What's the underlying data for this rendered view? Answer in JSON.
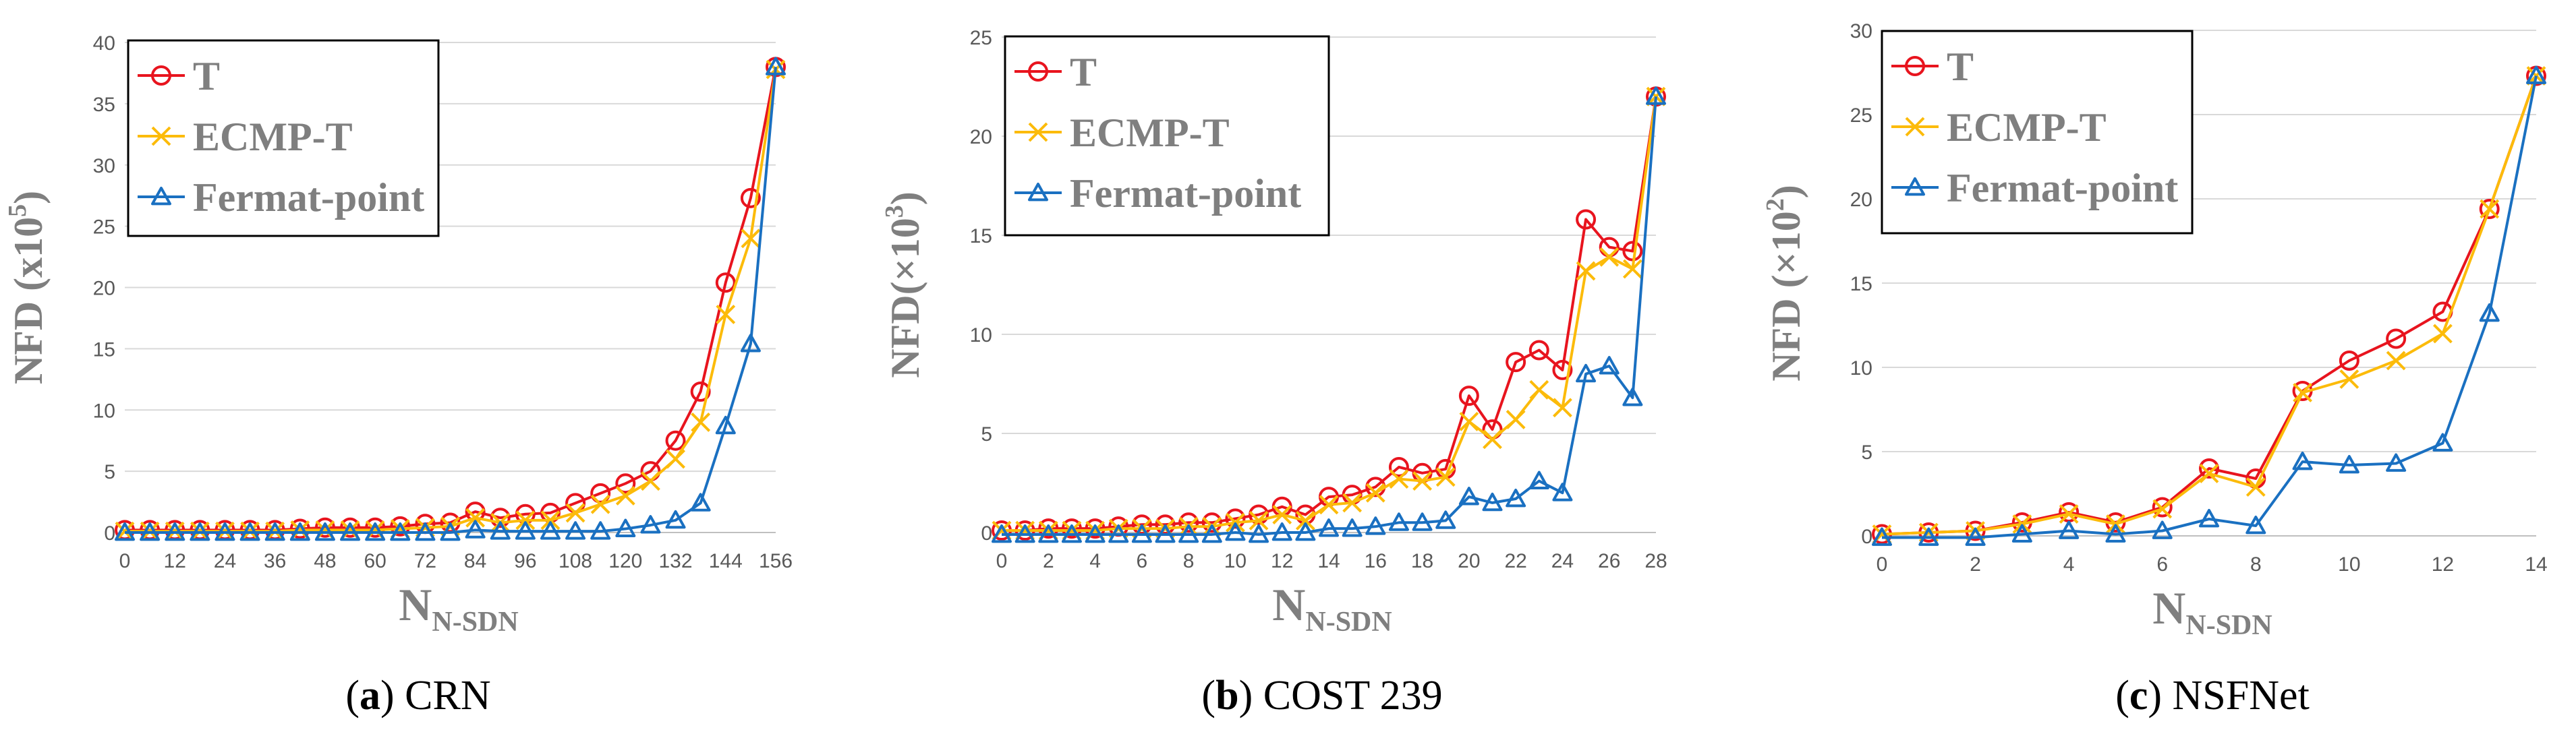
{
  "colors": {
    "T": "#e8141e",
    "ECMP-T": "#fcbb0a",
    "Fermat-point": "#1a70c1",
    "grid": "#d9d9d9",
    "axis_text": "#595959",
    "axis_title": "#7f7f7f"
  },
  "chart_data": [
    {
      "type": "line",
      "caption_letter": "a",
      "caption_name": "CRN",
      "ylabel": "NFD (x10",
      "ylabel_exp": "5",
      "ylabel_close": ")",
      "xlabel": "N",
      "xlabel_sub": "N-SDN",
      "ylim": [
        0,
        40
      ],
      "xlim": [
        0,
        156
      ],
      "yticks": [
        0,
        5,
        10,
        15,
        20,
        25,
        30,
        35,
        40
      ],
      "xticks": [
        0,
        12,
        24,
        36,
        48,
        60,
        72,
        84,
        96,
        108,
        120,
        132,
        144,
        156
      ],
      "legend_position": "top-left",
      "x": [
        0,
        6,
        12,
        18,
        24,
        30,
        36,
        42,
        48,
        54,
        60,
        66,
        72,
        78,
        84,
        90,
        96,
        102,
        108,
        114,
        120,
        126,
        132,
        138,
        144,
        150,
        156
      ],
      "series": [
        {
          "name": "T",
          "marker": "circle",
          "values": [
            0.2,
            0.2,
            0.2,
            0.2,
            0.2,
            0.2,
            0.2,
            0.3,
            0.4,
            0.4,
            0.4,
            0.5,
            0.7,
            0.8,
            1.7,
            1.2,
            1.5,
            1.6,
            2.4,
            3.2,
            4.0,
            5.0,
            7.5,
            11.5,
            20.4,
            27.3,
            38.0
          ]
        },
        {
          "name": "ECMP-T",
          "marker": "x",
          "values": [
            0.1,
            0.1,
            0.1,
            0.1,
            0.1,
            0.1,
            0.1,
            0.2,
            0.2,
            0.2,
            0.2,
            0.3,
            0.4,
            0.5,
            1.2,
            0.8,
            1.0,
            1.0,
            1.6,
            2.3,
            3.0,
            4.2,
            6.0,
            9.0,
            17.8,
            24.0,
            37.8
          ]
        },
        {
          "name": "Fermat-point",
          "marker": "triangle",
          "values": [
            0,
            0,
            0,
            0,
            0,
            0,
            0,
            0,
            0,
            0,
            0,
            0,
            0,
            0,
            0.2,
            0.1,
            0.1,
            0.1,
            0.1,
            0.1,
            0.3,
            0.6,
            1.0,
            2.4,
            8.7,
            15.4,
            38.0
          ]
        }
      ]
    },
    {
      "type": "line",
      "caption_letter": "b",
      "caption_name": "COST 239",
      "ylabel": "NFD(×10",
      "ylabel_exp": "3",
      "ylabel_close": ")",
      "xlabel": "N",
      "xlabel_sub": "N-SDN",
      "ylim": [
        0,
        25
      ],
      "xlim": [
        0,
        28
      ],
      "yticks": [
        0,
        5,
        10,
        15,
        20,
        25
      ],
      "xticks": [
        0,
        2,
        4,
        6,
        8,
        10,
        12,
        14,
        16,
        18,
        20,
        22,
        24,
        26,
        28
      ],
      "legend_position": "top-left",
      "x": [
        0,
        1,
        2,
        3,
        4,
        5,
        6,
        7,
        8,
        9,
        10,
        11,
        12,
        13,
        14,
        15,
        16,
        17,
        18,
        19,
        20,
        21,
        22,
        23,
        24,
        25,
        26,
        27,
        28
      ],
      "series": [
        {
          "name": "T",
          "marker": "circle",
          "values": [
            0.1,
            0.1,
            0.2,
            0.2,
            0.2,
            0.3,
            0.4,
            0.4,
            0.5,
            0.5,
            0.7,
            0.9,
            1.3,
            0.9,
            1.8,
            1.9,
            2.3,
            3.3,
            3.0,
            3.2,
            6.9,
            5.2,
            8.6,
            9.2,
            8.2,
            15.8,
            14.4,
            14.2,
            22.0
          ]
        },
        {
          "name": "ECMP-T",
          "marker": "x",
          "values": [
            0.1,
            0.1,
            0.1,
            0.1,
            0.1,
            0.2,
            0.2,
            0.2,
            0.3,
            0.3,
            0.5,
            0.6,
            0.9,
            0.6,
            1.4,
            1.5,
            2.0,
            2.7,
            2.6,
            2.8,
            5.6,
            4.7,
            5.7,
            7.2,
            6.3,
            13.2,
            13.9,
            13.3,
            22.0
          ]
        },
        {
          "name": "Fermat-point",
          "marker": "triangle",
          "values": [
            -0.1,
            -0.1,
            -0.1,
            -0.1,
            -0.1,
            -0.1,
            -0.1,
            -0.1,
            -0.1,
            -0.1,
            0.0,
            -0.1,
            0.0,
            0.0,
            0.2,
            0.2,
            0.3,
            0.5,
            0.5,
            0.6,
            1.8,
            1.5,
            1.7,
            2.6,
            2.0,
            8.0,
            8.4,
            6.8,
            22.0
          ]
        }
      ]
    },
    {
      "type": "line",
      "caption_letter": "c",
      "caption_name": "NSFNet",
      "ylabel": "NFD (×10",
      "ylabel_exp": "2",
      "ylabel_close": ")",
      "xlabel": "N",
      "xlabel_sub": "N-SDN",
      "ylim": [
        0,
        30
      ],
      "xlim": [
        0,
        14
      ],
      "yticks": [
        0,
        5,
        10,
        15,
        20,
        25,
        30
      ],
      "xticks": [
        0,
        2,
        4,
        6,
        8,
        10,
        12,
        14
      ],
      "legend_position": "top-left",
      "x": [
        0,
        1,
        2,
        3,
        4,
        5,
        6,
        7,
        8,
        9,
        10,
        11,
        12,
        13,
        14
      ],
      "series": [
        {
          "name": "T",
          "marker": "circle",
          "values": [
            0.1,
            0.2,
            0.3,
            0.8,
            1.4,
            0.8,
            1.7,
            4.0,
            3.4,
            8.6,
            10.4,
            11.7,
            13.3,
            19.4,
            27.3
          ]
        },
        {
          "name": "ECMP-T",
          "marker": "x",
          "values": [
            0.1,
            0.2,
            0.3,
            0.7,
            1.3,
            0.7,
            1.6,
            3.7,
            2.9,
            8.5,
            9.3,
            10.4,
            12.0,
            19.4,
            27.3
          ]
        },
        {
          "name": "Fermat-point",
          "marker": "triangle",
          "values": [
            -0.1,
            -0.1,
            -0.1,
            0.1,
            0.3,
            0.1,
            0.3,
            1.0,
            0.6,
            4.4,
            4.2,
            4.3,
            5.5,
            13.2,
            27.3
          ]
        }
      ]
    }
  ]
}
